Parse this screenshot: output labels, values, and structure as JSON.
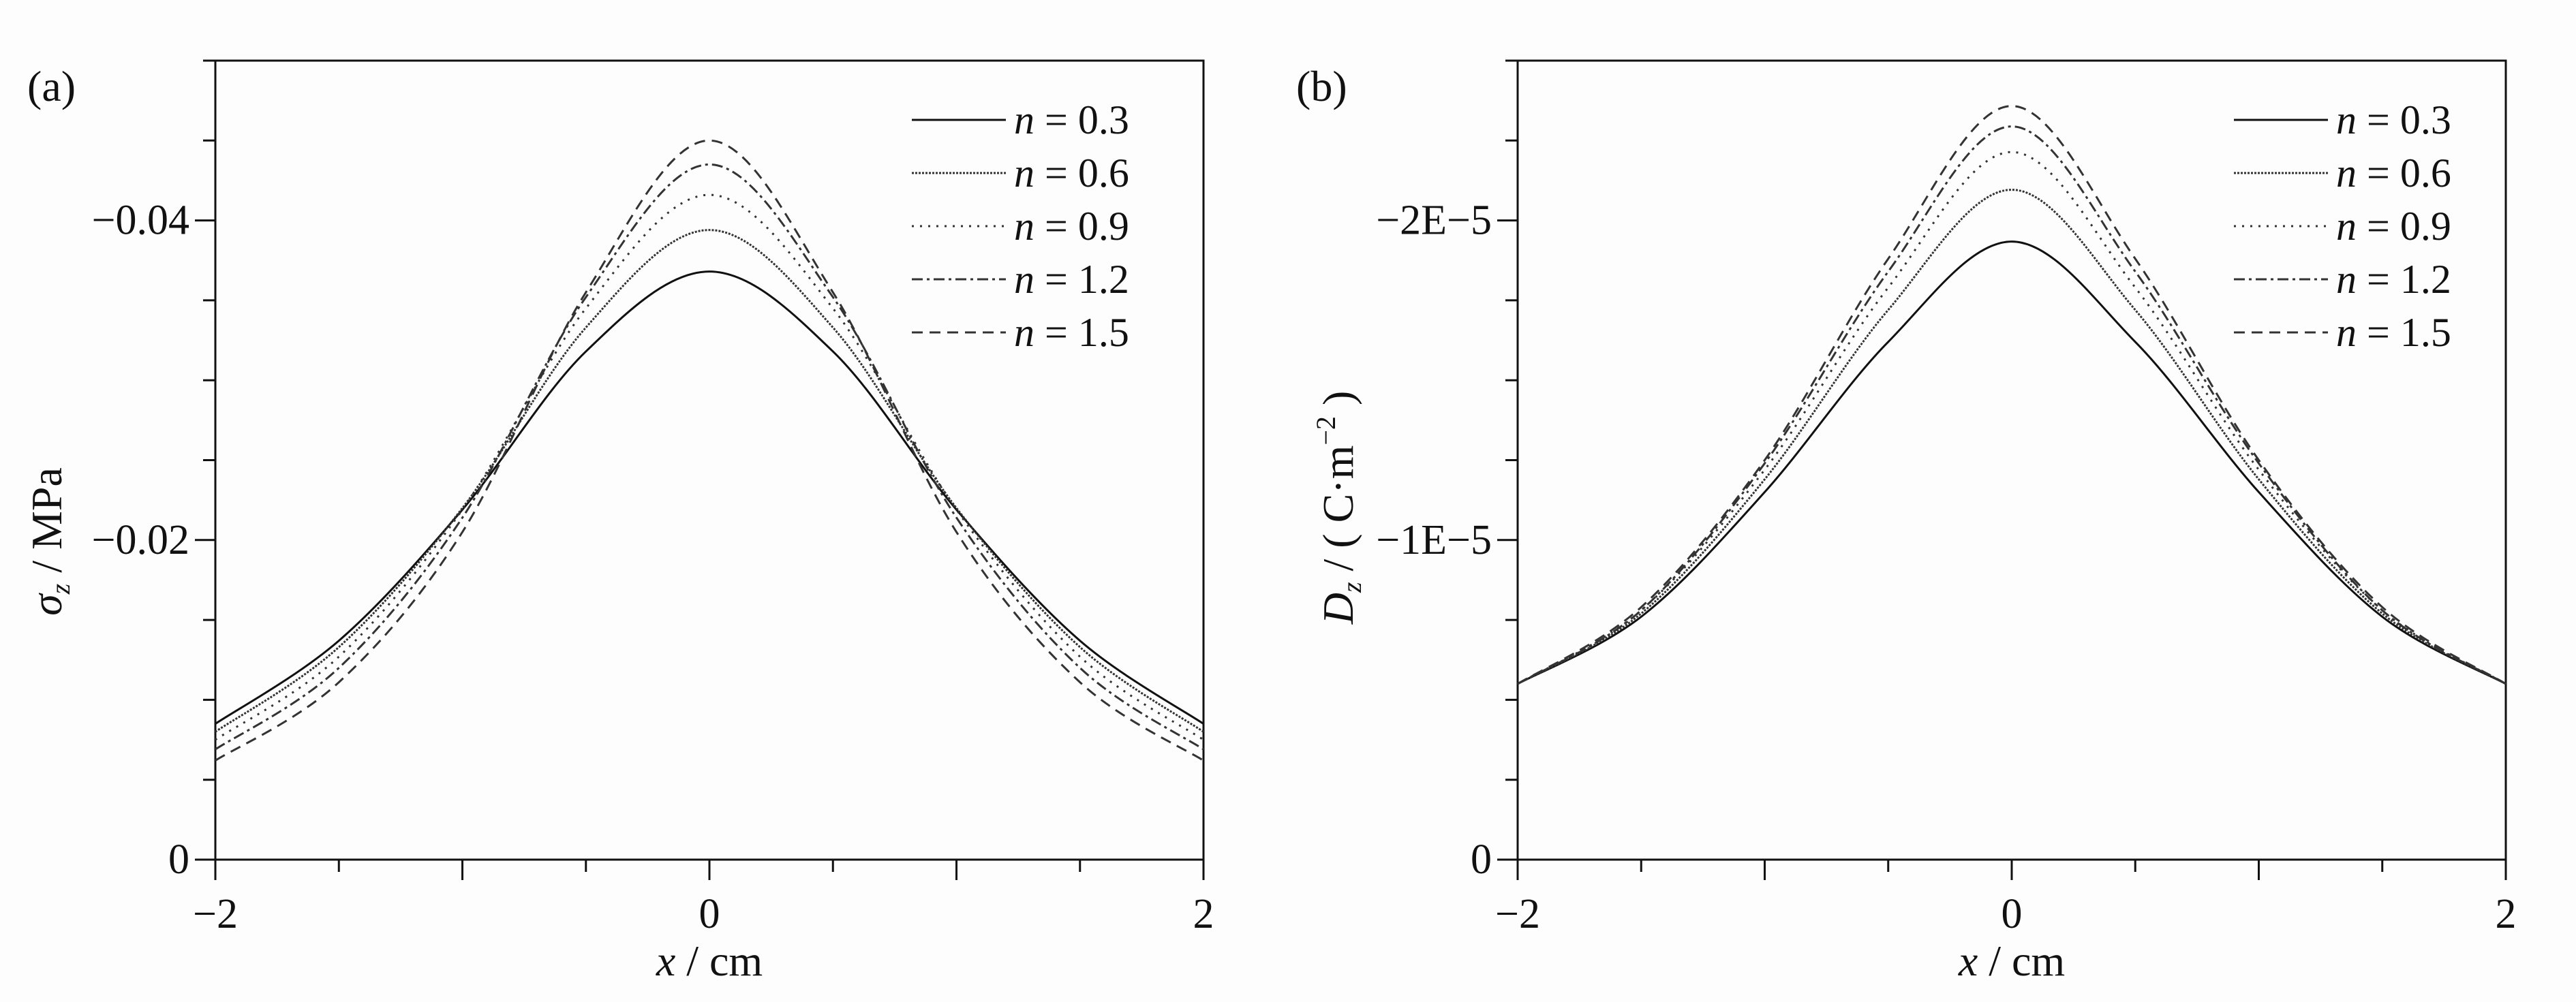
{
  "chart_data": [
    {
      "type": "line",
      "panel_label": "(a)",
      "xlabel": {
        "var": "x",
        "rest": " / cm"
      },
      "ylabel": {
        "var": "σ",
        "sub": "z",
        "rest": " / MPa"
      },
      "xlim": [
        -2,
        2
      ],
      "ylim": [
        0,
        -0.05
      ],
      "xticks": [
        {
          "value": -2,
          "label": "−2"
        },
        {
          "value": 0,
          "label": "0"
        },
        {
          "value": 2,
          "label": "2"
        }
      ],
      "yticks": [
        {
          "value": 0,
          "label": "0"
        },
        {
          "value": -0.02,
          "label": "−0.02"
        },
        {
          "value": -0.04,
          "label": "−0.04"
        }
      ],
      "grid": false,
      "legend_position": "top-right",
      "x": [
        -2,
        -1.5,
        -1,
        -0.5,
        0,
        0.5,
        1,
        1.5,
        2
      ],
      "series": [
        {
          "name": "n = 0.3",
          "var": "n",
          "eq": " = 0.3",
          "style": "solid",
          "values": [
            -0.0085,
            -0.0137,
            -0.0219,
            -0.0318,
            -0.0368,
            -0.0318,
            -0.0219,
            -0.0137,
            -0.0085
          ]
        },
        {
          "name": "n = 0.6",
          "var": "n",
          "eq": " = 0.6",
          "style": "dense-dot",
          "values": [
            -0.008,
            -0.0133,
            -0.022,
            -0.0333,
            -0.0394,
            -0.0333,
            -0.022,
            -0.0133,
            -0.008
          ]
        },
        {
          "name": "n = 0.9",
          "var": "n",
          "eq": " = 0.9",
          "style": "dot",
          "values": [
            -0.0075,
            -0.0127,
            -0.0219,
            -0.0345,
            -0.0416,
            -0.0345,
            -0.0219,
            -0.0127,
            -0.0075
          ]
        },
        {
          "name": "n = 1.2",
          "var": "n",
          "eq": " = 1.2",
          "style": "dash-dot",
          "values": [
            -0.0069,
            -0.012,
            -0.0214,
            -0.0352,
            -0.0435,
            -0.0352,
            -0.0214,
            -0.012,
            -0.0069
          ]
        },
        {
          "name": "n = 1.5",
          "var": "n",
          "eq": " = 1.5",
          "style": "dash",
          "values": [
            -0.0062,
            -0.0111,
            -0.0205,
            -0.0355,
            -0.045,
            -0.0355,
            -0.0205,
            -0.0111,
            -0.0062
          ]
        }
      ]
    },
    {
      "type": "line",
      "panel_label": "(b)",
      "xlabel": {
        "var": "x",
        "rest": " / cm"
      },
      "ylabel": {
        "var": "D",
        "sub": "z",
        "rest": "  / ( C·m",
        "sup": "−2",
        "close": " )"
      },
      "xlim": [
        -2,
        2
      ],
      "ylim": [
        0,
        -2.5e-05
      ],
      "xticks": [
        {
          "value": -2,
          "label": "−2"
        },
        {
          "value": 0,
          "label": "0"
        },
        {
          "value": 2,
          "label": "2"
        }
      ],
      "yticks": [
        {
          "value": 0,
          "label": "0"
        },
        {
          "value": -1e-05,
          "label": "−1E−5"
        },
        {
          "value": -2e-05,
          "label": "−2E−5"
        }
      ],
      "grid": false,
      "legend_position": "top-right",
      "x": [
        -2,
        -1.5,
        -1,
        -0.5,
        0,
        0.5,
        1,
        1.5,
        2
      ],
      "series": [
        {
          "name": "n = 0.3",
          "var": "n",
          "eq": " = 0.3",
          "style": "solid",
          "values": [
            -5.5e-06,
            -7.6e-06,
            -1.15e-05,
            -1.62e-05,
            -1.934e-05,
            -1.62e-05,
            -1.15e-05,
            -7.6e-06,
            -5.5e-06
          ]
        },
        {
          "name": "n = 0.6",
          "var": "n",
          "eq": " = 0.6",
          "style": "dense-dot",
          "values": [
            -5.5e-06,
            -7.7e-06,
            -1.19e-05,
            -1.72e-05,
            -2.096e-05,
            -1.72e-05,
            -1.19e-05,
            -7.7e-06,
            -5.5e-06
          ]
        },
        {
          "name": "n = 0.9",
          "var": "n",
          "eq": " = 0.9",
          "style": "dot",
          "values": [
            -5.5e-06,
            -7.8e-06,
            -1.22e-05,
            -1.79e-05,
            -2.214e-05,
            -1.79e-05,
            -1.22e-05,
            -7.8e-06,
            -5.5e-06
          ]
        },
        {
          "name": "n = 1.2",
          "var": "n",
          "eq": " = 1.2",
          "style": "dash-dot",
          "values": [
            -5.5e-06,
            -7.8e-06,
            -1.24e-05,
            -1.84e-05,
            -2.294e-05,
            -1.84e-05,
            -1.24e-05,
            -7.8e-06,
            -5.5e-06
          ]
        },
        {
          "name": "n = 1.5",
          "var": "n",
          "eq": " = 1.5",
          "style": "dash",
          "values": [
            -5.5e-06,
            -7.9e-06,
            -1.25e-05,
            -1.88e-05,
            -2.358e-05,
            -1.88e-05,
            -1.25e-05,
            -7.9e-06,
            -5.5e-06
          ]
        }
      ]
    }
  ]
}
